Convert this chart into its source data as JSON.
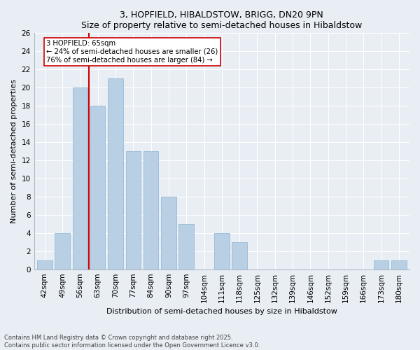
{
  "title": "3, HOPFIELD, HIBALDSTOW, BRIGG, DN20 9PN",
  "subtitle": "Size of property relative to semi-detached houses in Hibaldstow",
  "xlabel": "Distribution of semi-detached houses by size in Hibaldstow",
  "ylabel": "Number of semi-detached properties",
  "categories": [
    "42sqm",
    "49sqm",
    "56sqm",
    "63sqm",
    "70sqm",
    "77sqm",
    "84sqm",
    "90sqm",
    "97sqm",
    "104sqm",
    "111sqm",
    "118sqm",
    "125sqm",
    "132sqm",
    "139sqm",
    "146sqm",
    "152sqm",
    "159sqm",
    "166sqm",
    "173sqm",
    "180sqm"
  ],
  "values": [
    1,
    4,
    20,
    18,
    21,
    13,
    13,
    8,
    5,
    0,
    4,
    3,
    0,
    0,
    0,
    0,
    0,
    0,
    0,
    1,
    1
  ],
  "bar_color": "#b8cfe4",
  "bar_edge_color": "#8ab4d4",
  "vline_x": 2.5,
  "vline_color": "#cc0000",
  "annotation_box_edge": "#cc0000",
  "annotation_text_line1": "3 HOPFIELD: 65sqm",
  "annotation_text_line2": "← 24% of semi-detached houses are smaller (26)",
  "annotation_text_line3": "76% of semi-detached houses are larger (84) →",
  "ylim": [
    0,
    26
  ],
  "yticks": [
    0,
    2,
    4,
    6,
    8,
    10,
    12,
    14,
    16,
    18,
    20,
    22,
    24,
    26
  ],
  "footer_line1": "Contains HM Land Registry data © Crown copyright and database right 2025.",
  "footer_line2": "Contains public sector information licensed under the Open Government Licence v3.0.",
  "bg_color": "#e8eef4",
  "plot_bg_color": "#e8eef4",
  "title_fontsize": 9,
  "subtitle_fontsize": 8.5,
  "ylabel_fontsize": 8,
  "xlabel_fontsize": 8,
  "tick_fontsize": 7.5,
  "footer_fontsize": 6
}
